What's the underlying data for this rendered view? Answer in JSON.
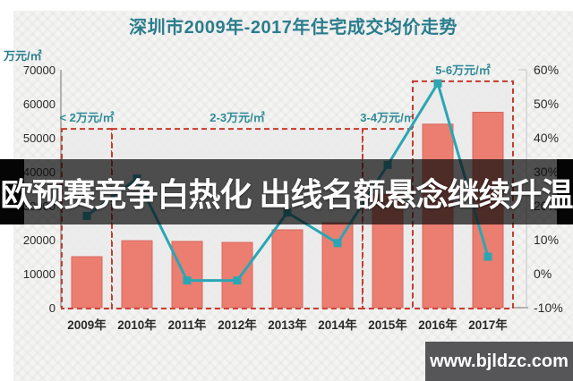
{
  "title": "深圳市2009年-2017年住宅成交均价走势",
  "y_axis_unit": "万元/㎡",
  "overlay": {
    "headline": "欧预赛竞争白热化 出线名额悬念继续升温"
  },
  "watermark": {
    "text": "www.bjldzc.com"
  },
  "colors": {
    "title_teal": "#2b7d8d",
    "annotation_teal": "#2e8b97",
    "bar_fill": "#eb7e70",
    "bar_stroke": "#d9685c",
    "line_teal": "#2aa6b4",
    "dashed_red": "#c53b2d",
    "axis_gray": "#9b9b9b",
    "tick_text": "#2a2a2a",
    "box_fill": "#ebebea"
  },
  "chart_data": {
    "type": "bar+line combo (bars on left axis, line on right axis)",
    "categories": [
      "2009年",
      "2010年",
      "2011年",
      "2012年",
      "2013年",
      "2014年",
      "2015年",
      "2016年",
      "2017年"
    ],
    "series": [
      {
        "type": "bar",
        "axis": "left",
        "values": [
          15000,
          19700,
          19500,
          19200,
          22900,
          25000,
          33400,
          54000,
          57500
        ]
      },
      {
        "type": "line",
        "axis": "right",
        "values": [
          17,
          28,
          -2,
          -2,
          18,
          9,
          32,
          56,
          5
        ]
      }
    ],
    "y_left": {
      "label": "万元/㎡",
      "min": 0,
      "max": 70000,
      "tick_step": 10000
    },
    "y_right": {
      "min": -10,
      "max": 60,
      "tick_step": 10,
      "format": "percent"
    },
    "annotations": [
      {
        "label": "< 2万元/㎡",
        "from": "2009年",
        "to": "2009年",
        "box_top_value": 52600
      },
      {
        "label": "2-3万元/㎡",
        "from": "2010年",
        "to": "2014年",
        "box_top_value": 52600
      },
      {
        "label": "3-4万元/㎡",
        "from": "2015年",
        "to": "2015年",
        "box_top_value": 52600
      },
      {
        "label": "5-6万元/㎡",
        "from": "2016年",
        "to": "2017年",
        "box_top_value": 66600
      }
    ],
    "legend": "none",
    "grid": "none"
  }
}
